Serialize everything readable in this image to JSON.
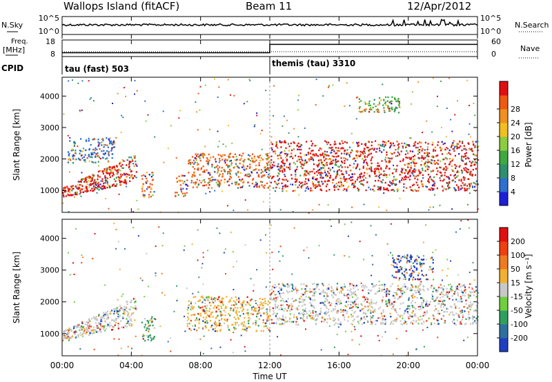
{
  "header": {
    "station": "Wallops Island (fitACF)",
    "beam": "Beam 11",
    "date": "12/Apr/2012"
  },
  "side_labels": {
    "nsky": "N.Sky",
    "freq_line1": "Freq.",
    "freq_line2": "[MHz]",
    "cpid": "CPID",
    "nsearch": "N.Search",
    "nave": "Nave"
  },
  "chart_data": [
    {
      "type": "line",
      "name": "noise",
      "left_axis": {
        "label": "N.Sky",
        "ticks": [
          "10^5",
          "10^0"
        ]
      },
      "right_axis": {
        "label": "N.Search",
        "ticks": [
          "10^5",
          "10^0"
        ]
      },
      "x_range_hours": [
        0,
        24
      ],
      "approx_level": "flat trace near upper-middle of panel with small spikes, more spikes after 20:00"
    },
    {
      "type": "line",
      "name": "frequency_nave",
      "left_axis": {
        "label": "Freq. [MHz]",
        "ticks": [
          "18",
          "8"
        ]
      },
      "right_axis": {
        "label": "Nave",
        "ticks": [
          "60",
          "0"
        ]
      },
      "freq_segments": [
        {
          "x_start": "00:00",
          "x_end": "12:00",
          "value_mhz": 10.5
        },
        {
          "x_start": "12:00",
          "x_end": "24:00",
          "value_mhz": 16.0
        }
      ],
      "nave_approx": 6
    },
    {
      "type": "table",
      "name": "cpid",
      "label": "CPID",
      "segments": [
        {
          "start": "00:00",
          "label": "tau (fast) 503"
        },
        {
          "start": "12:00",
          "label": "themis (tau) 3310"
        }
      ]
    },
    {
      "type": "heatmap",
      "name": "power",
      "ylabel": "Slant Range [km]",
      "yticks": [
        1000,
        2000,
        3000,
        4000
      ],
      "ylim": [
        300,
        4600
      ],
      "colorbar": {
        "label": "Power [dB]",
        "ticks": [
          "4",
          "8",
          "12",
          "16",
          "20",
          "24",
          "28"
        ],
        "colors": [
          "#1f1fd6",
          "#2f6fcf",
          "#2f8f6f",
          "#3fa83f",
          "#8ccc3f",
          "#f0c020",
          "#f09020",
          "#f05a10",
          "#e01010"
        ]
      },
      "echo_regions": [
        {
          "name": "main-arc-early",
          "t0": 0.0,
          "t1": 4.3,
          "r0": 800,
          "r1": 1900,
          "tilt": 1,
          "peak_color": "#e01010"
        },
        {
          "name": "upper-scatter-early",
          "t0": 0.3,
          "t1": 3.0,
          "r0": 1900,
          "r1": 2700,
          "peak_color": "#2f6fcf"
        },
        {
          "name": "bump-0430",
          "t0": 4.5,
          "t1": 5.3,
          "r0": 800,
          "r1": 1600,
          "peak_color": "#f05a10"
        },
        {
          "name": "bump-0630",
          "t0": 6.5,
          "t1": 7.2,
          "r0": 800,
          "r1": 1500,
          "peak_color": "#f05a10"
        },
        {
          "name": "midday-band",
          "t0": 7.2,
          "t1": 12.0,
          "r0": 1100,
          "r1": 2200,
          "peak_color": "#f05a10"
        },
        {
          "name": "afternoon-band",
          "t0": 12.0,
          "t1": 24.0,
          "r0": 1000,
          "r1": 2600,
          "peak_color": "#e01010"
        },
        {
          "name": "late-high",
          "t0": 17.0,
          "t1": 19.5,
          "r0": 3500,
          "r1": 4000,
          "peak_color": "#3fa83f"
        }
      ]
    },
    {
      "type": "heatmap",
      "name": "velocity",
      "ylabel": "Slant Range [km]",
      "xlabel": "Time UT",
      "xticks": [
        "00:00",
        "04:00",
        "08:00",
        "12:00",
        "16:00",
        "20:00",
        "00:00"
      ],
      "yticks": [
        1000,
        2000,
        3000,
        4000
      ],
      "ylim": [
        300,
        4600
      ],
      "colorbar": {
        "label": "Velocity [m s⁻¹]",
        "ticks": [
          "200",
          "100",
          "50",
          "15",
          "-15",
          "-50",
          "-100",
          "-200"
        ],
        "colors": [
          "#1f3fc0",
          "#2f6f9f",
          "#2f9f5f",
          "#6fcf3f",
          "#c8c8c8",
          "#f0b030",
          "#f07a20",
          "#f04010",
          "#e01010"
        ]
      },
      "echo_regions": [
        {
          "name": "main-arc-early",
          "t0": 0.0,
          "t1": 4.3,
          "r0": 800,
          "r1": 1900,
          "tilt": 1,
          "peak_color": "#c8c8c8"
        },
        {
          "name": "bump-0430",
          "t0": 4.5,
          "t1": 5.3,
          "r0": 800,
          "r1": 1600,
          "peak_color": "#2f9f5f"
        },
        {
          "name": "midday-band",
          "t0": 7.2,
          "t1": 12.0,
          "r0": 1100,
          "r1": 2200,
          "peak_color": "#f0b030"
        },
        {
          "name": "afternoon-band",
          "t0": 12.0,
          "t1": 24.0,
          "r0": 1300,
          "r1": 2600,
          "peak_color": "#c8c8c8"
        },
        {
          "name": "late-blue",
          "t0": 19.0,
          "t1": 21.5,
          "r0": 2700,
          "r1": 3500,
          "peak_color": "#1f3fc0"
        }
      ]
    }
  ]
}
